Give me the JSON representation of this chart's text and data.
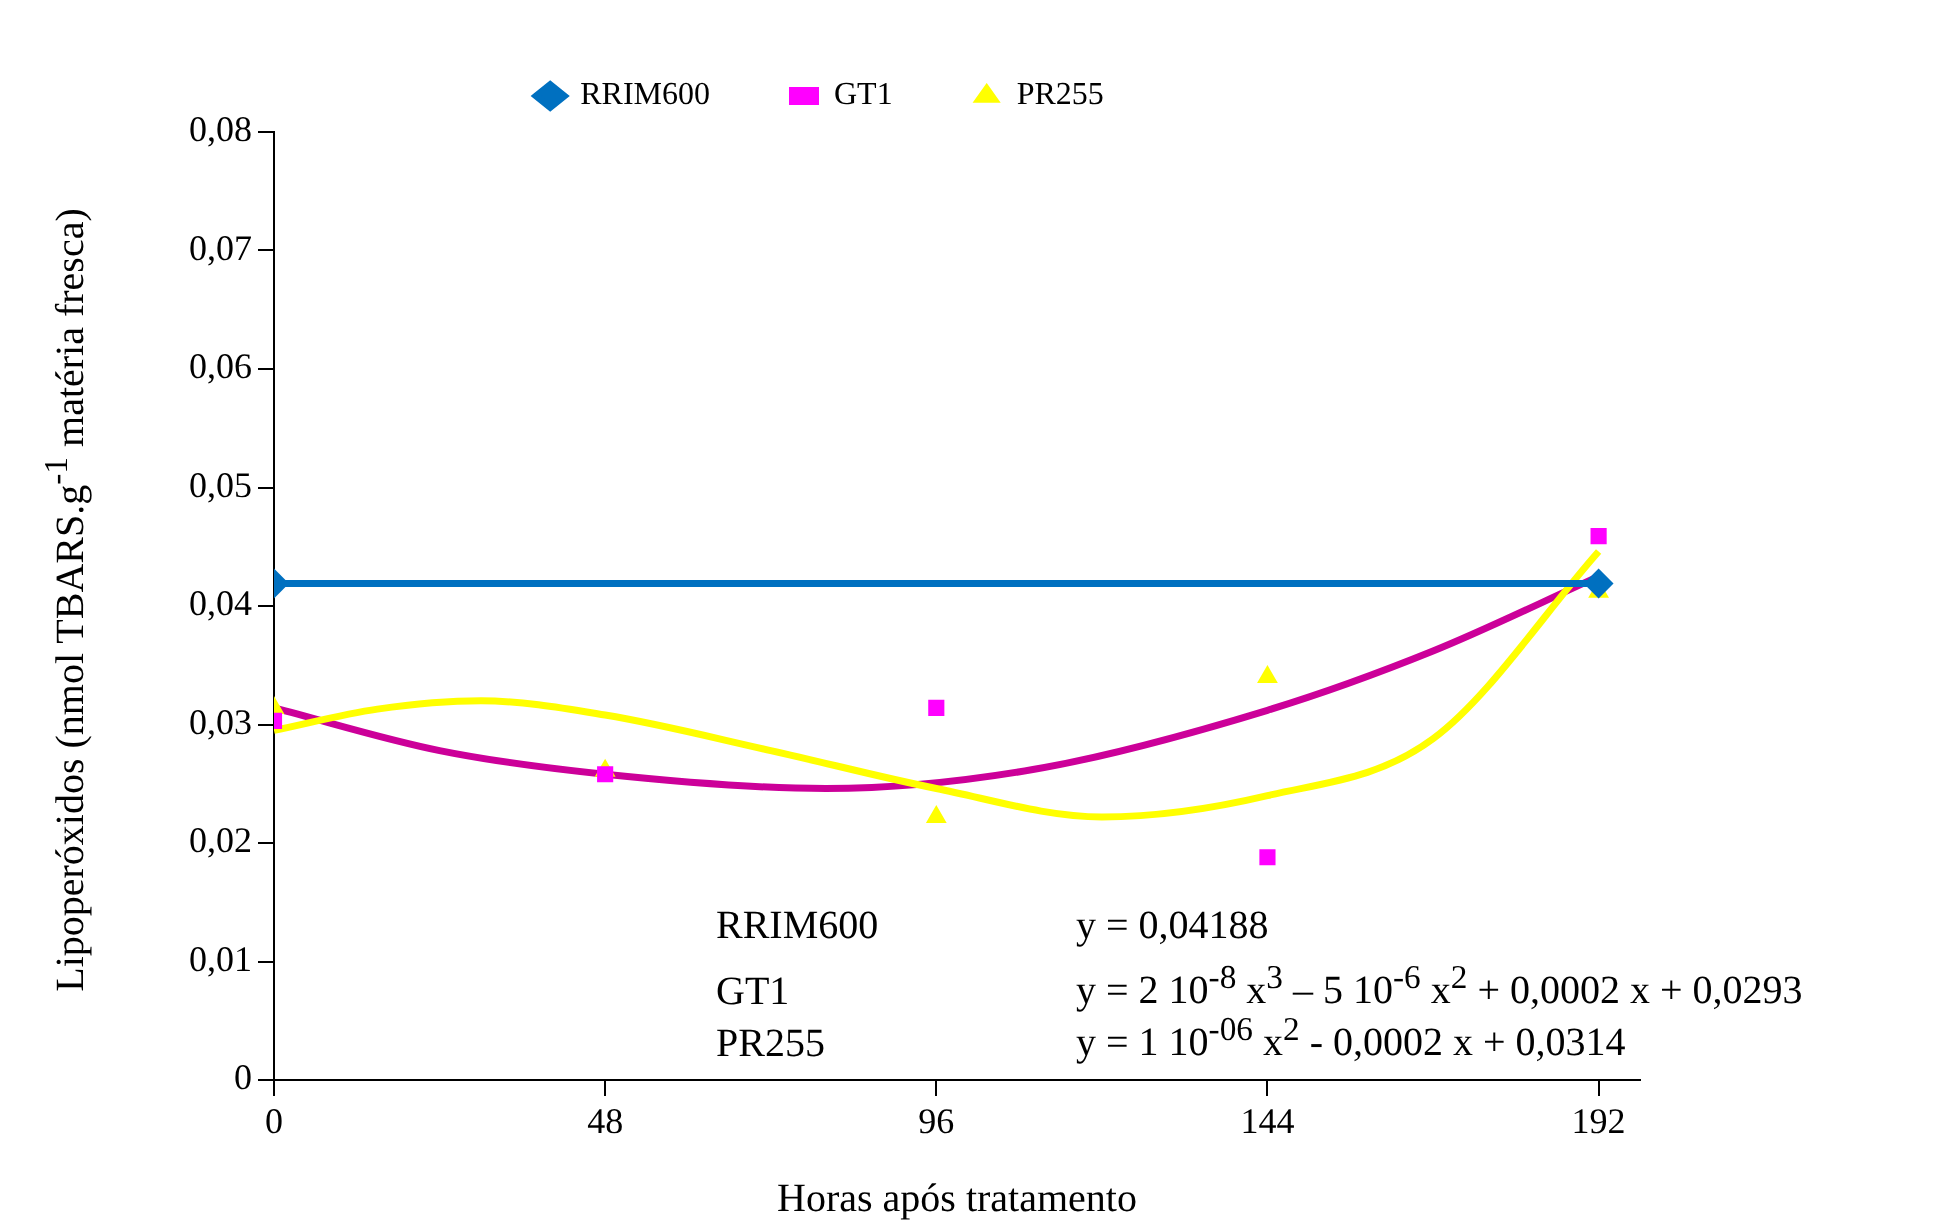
{
  "chart_data": {
    "type": "scatter",
    "xlabel": "Horas após tratamento",
    "ylabel": "Lipoperóxidos (nmol TBARS.g$^{-1}$ matéria fresca)",
    "xlim": [
      0,
      198
    ],
    "xticks": [
      0,
      48,
      96,
      144,
      192
    ],
    "ylim": [
      0,
      0.08
    ],
    "yticks": [
      0,
      {
        "value": 0.01,
        "label": "0,01"
      },
      {
        "value": 0.02,
        "label": "0,02"
      },
      {
        "value": 0.03,
        "label": "0,03"
      },
      {
        "value": 0.04,
        "label": "0,04"
      },
      {
        "value": 0.05,
        "label": "0,05"
      },
      {
        "value": 0.06,
        "label": "0,06"
      },
      {
        "value": 0.07,
        "label": "0,07"
      },
      {
        "value": 0.08,
        "label": "0,08"
      }
    ],
    "legend": "top",
    "series": [
      {
        "name": "RRIM600",
        "type": "line",
        "marker": "diamond",
        "color": "#0070c0",
        "x": [
          0,
          192
        ],
        "values": [
          0.0419,
          0.0419
        ]
      },
      {
        "name": "GT1",
        "marker": "square",
        "color": "#ff00ff",
        "x": [
          0,
          48,
          96,
          144,
          192
        ],
        "values": [
          0.0303,
          0.0258,
          0.0314,
          0.0188,
          0.0459
        ]
      },
      {
        "name": "PR255",
        "marker": "triangle",
        "color": "#ffff00",
        "x": [
          0,
          48,
          96,
          144,
          192
        ],
        "values": [
          0.0314,
          0.0261,
          0.0222,
          0.034,
          0.0412
        ]
      },
      {
        "type": "line",
        "marker": "none",
        "color": "#ffff00",
        "x": [
          0,
          15,
          30,
          48,
          72,
          96,
          120,
          144,
          168,
          192
        ],
        "values": [
          0.0295,
          0.0313,
          0.032,
          0.0308,
          0.0278,
          0.0246,
          0.0222,
          0.024,
          0.0288,
          0.0446
        ]
      },
      {
        "type": "line",
        "marker": "none",
        "color": "#cc0099",
        "x": [
          0,
          24,
          48,
          80,
          110,
          144,
          168,
          192
        ],
        "values": [
          0.0314,
          0.0278,
          0.0258,
          0.0246,
          0.0262,
          0.0312,
          0.0362,
          0.0425
        ]
      }
    ],
    "annotations": [
      "RRIM600",
      "y = 0,04188",
      "GT1",
      "y = 2 10$^{-8}$ x$^{3}$ – 5 10$^{-6}$ x$^{2}$ + 0,0002 x + 0,0293",
      "PR255",
      "y = 1 10$^{-06}$ x$^{2}$ - 0,0002 x + 0,0314"
    ]
  }
}
